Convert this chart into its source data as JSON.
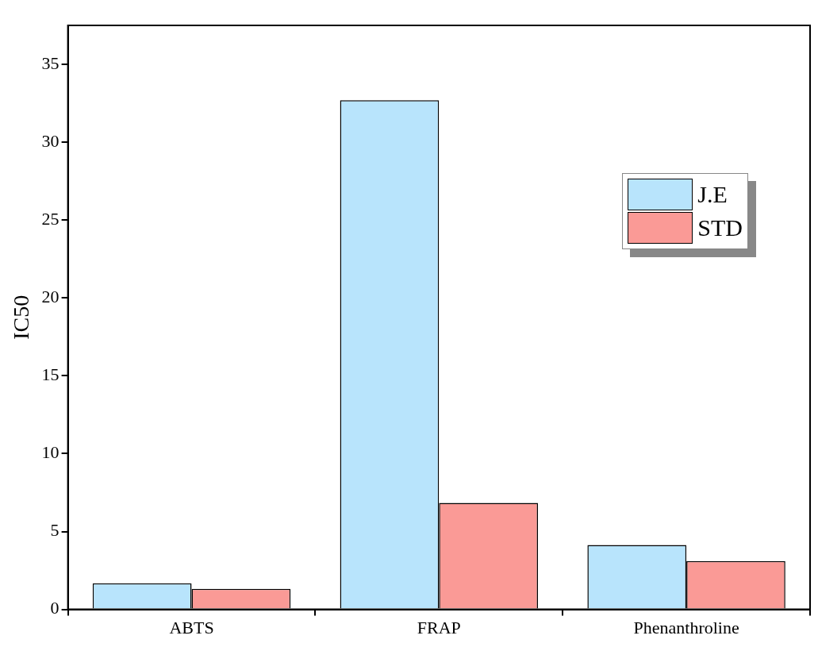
{
  "chart_data": {
    "type": "bar",
    "ylabel": "IC50",
    "categories": [
      "ABTS",
      "FRAP",
      "Phenanthroline"
    ],
    "series": [
      {
        "name": "J.E",
        "color": "#b8e4fc",
        "values": [
          1.68,
          32.7,
          4.13
        ]
      },
      {
        "name": "STD",
        "color": "#fa9a96",
        "values": [
          1.32,
          6.83,
          3.1
        ]
      }
    ],
    "ylim": [
      0,
      37.5
    ],
    "yticks": [
      0,
      5,
      10,
      15,
      20,
      25,
      30,
      35
    ],
    "grid": false,
    "legend": "top right"
  }
}
